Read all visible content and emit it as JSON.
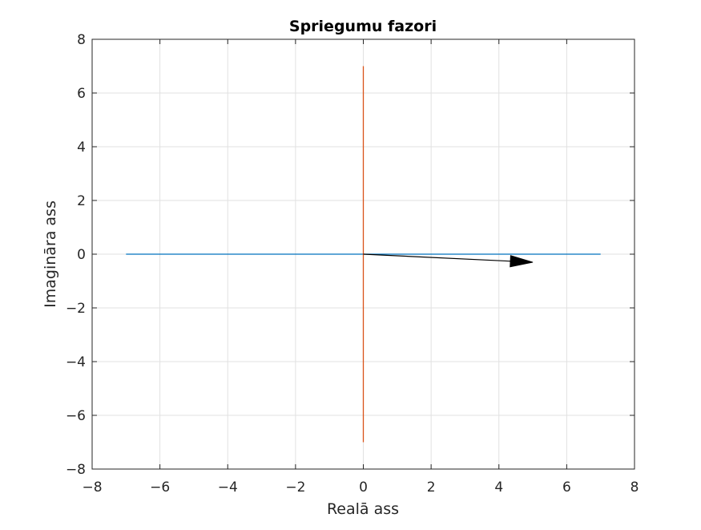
{
  "chart_data": {
    "type": "line",
    "title": "Spriegumu fazori",
    "xlabel": "Realā ass",
    "ylabel": "Imagināra ass",
    "xlim": [
      -8,
      8
    ],
    "ylim": [
      -8,
      8
    ],
    "xticks": [
      -8,
      -6,
      -4,
      -2,
      0,
      2,
      4,
      6,
      8
    ],
    "yticks": [
      -8,
      -6,
      -4,
      -2,
      0,
      2,
      4,
      6,
      8
    ],
    "xtick_labels": [
      "−8",
      "−6",
      "−4",
      "−2",
      "0",
      "2",
      "4",
      "6",
      "8"
    ],
    "ytick_labels": [
      "−8",
      "−6",
      "−4",
      "−2",
      "0",
      "2",
      "4",
      "6",
      "8"
    ],
    "grid": true,
    "series": [
      {
        "x": [
          -7,
          7
        ],
        "y": [
          0,
          0
        ],
        "color": "#0072bd"
      },
      {
        "x": [
          0,
          0
        ],
        "y": [
          -7,
          7
        ],
        "color": "#d95319"
      }
    ],
    "arrows": [
      {
        "x0": 0,
        "y0": 0,
        "x1": 5.0,
        "y1": -0.3,
        "color": "#000000"
      }
    ]
  }
}
